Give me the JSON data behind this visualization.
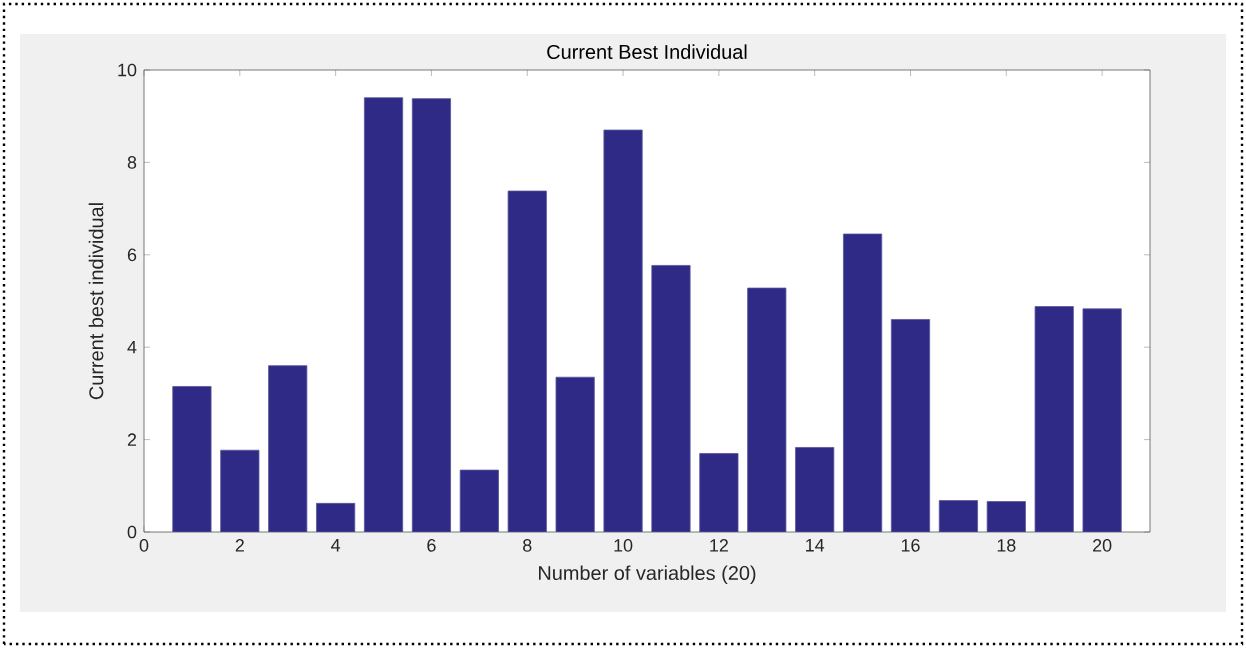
{
  "chart_data": {
    "type": "bar",
    "title": "Current Best Individual",
    "xlabel": "Number of variables (20)",
    "ylabel": "Current best individual",
    "x": [
      1,
      2,
      3,
      4,
      5,
      6,
      7,
      8,
      9,
      10,
      11,
      12,
      13,
      14,
      15,
      16,
      17,
      18,
      19,
      20
    ],
    "values": [
      3.15,
      1.77,
      3.6,
      0.62,
      9.4,
      9.38,
      1.34,
      7.38,
      3.35,
      8.7,
      5.77,
      1.7,
      5.28,
      1.83,
      6.45,
      4.6,
      0.68,
      0.66,
      4.88,
      4.83
    ],
    "color": "#2e2a85",
    "xlim": [
      0,
      21
    ],
    "ylim": [
      0,
      10
    ],
    "xticks": [
      0,
      2,
      4,
      6,
      8,
      10,
      12,
      14,
      16,
      18,
      20
    ],
    "yticks": [
      0,
      2,
      4,
      6,
      8,
      10
    ]
  }
}
